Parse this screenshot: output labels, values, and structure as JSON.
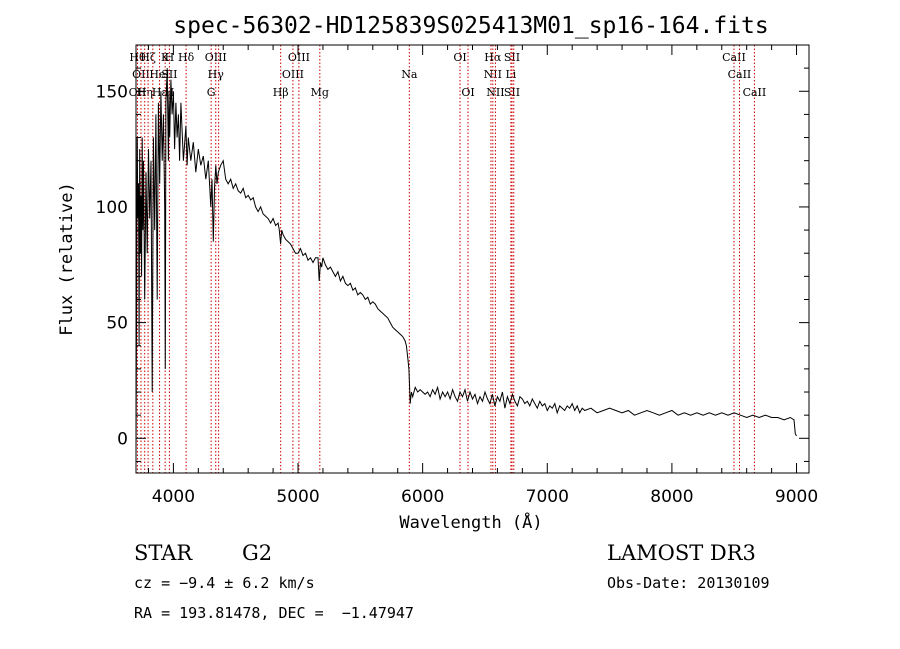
{
  "chart_data": {
    "type": "line",
    "title": "spec-56302-HD125839S025413M01_sp16-164.fits",
    "xlabel": "Wavelength (Å)",
    "ylabel": "Flux (relative)",
    "xlim": [
      3700,
      9100
    ],
    "ylim": [
      -15,
      170
    ],
    "xticks": [
      "4000",
      "5000",
      "6000",
      "7000",
      "8000",
      "9000"
    ],
    "yticks": [
      "0",
      "50",
      "100",
      "150"
    ],
    "grid": false,
    "series": [
      {
        "x": [
          3700,
          3705,
          3710,
          3715,
          3720,
          3725,
          3730,
          3735,
          3740,
          3745,
          3750,
          3755,
          3760,
          3770,
          3780,
          3790,
          3800,
          3810,
          3820,
          3830,
          3840,
          3850,
          3860,
          3870,
          3880,
          3890,
          3900,
          3910,
          3920,
          3930,
          3935,
          3940,
          3950,
          3960,
          3965,
          3970,
          3980,
          3990,
          4000,
          4010,
          4020,
          4030,
          4040,
          4050,
          4060,
          4080,
          4100,
          4110,
          4120,
          4140,
          4160,
          4180,
          4200,
          4220,
          4240,
          4260,
          4280,
          4300,
          4310,
          4320,
          4330,
          4340,
          4350,
          4360,
          4380,
          4400,
          4420,
          4440,
          4460,
          4480,
          4500,
          4520,
          4540,
          4560,
          4580,
          4600,
          4620,
          4640,
          4660,
          4680,
          4700,
          4720,
          4740,
          4760,
          4780,
          4800,
          4820,
          4840,
          4850,
          4860,
          4870,
          4880,
          4900,
          4920,
          4940,
          4960,
          4980,
          5000,
          5020,
          5040,
          5060,
          5080,
          5100,
          5120,
          5140,
          5160,
          5170,
          5180,
          5190,
          5200,
          5220,
          5240,
          5260,
          5280,
          5300,
          5320,
          5340,
          5360,
          5380,
          5400,
          5420,
          5440,
          5460,
          5480,
          5500,
          5520,
          5540,
          5560,
          5580,
          5600,
          5620,
          5640,
          5660,
          5680,
          5700,
          5720,
          5740,
          5760,
          5780,
          5800,
          5820,
          5840,
          5860,
          5870,
          5880,
          5890,
          5895,
          5900,
          5910,
          5920,
          5940,
          5960,
          5980,
          6000,
          6020,
          6040,
          6060,
          6080,
          6100,
          6120,
          6140,
          6160,
          6180,
          6200,
          6220,
          6240,
          6260,
          6280,
          6300,
          6320,
          6340,
          6360,
          6380,
          6400,
          6420,
          6440,
          6460,
          6480,
          6500,
          6520,
          6540,
          6560,
          6580,
          6600,
          6620,
          6640,
          6660,
          6680,
          6700,
          6720,
          6740,
          6760,
          6780,
          6800,
          6820,
          6840,
          6860,
          6880,
          6900,
          6920,
          6940,
          6960,
          6980,
          7000,
          7020,
          7040,
          7060,
          7080,
          7100,
          7120,
          7140,
          7160,
          7180,
          7200,
          7220,
          7240,
          7260,
          7280,
          7300,
          7350,
          7400,
          7450,
          7500,
          7550,
          7600,
          7650,
          7700,
          7750,
          7800,
          7850,
          7900,
          7950,
          8000,
          8050,
          8100,
          8150,
          8200,
          8250,
          8300,
          8350,
          8400,
          8450,
          8500,
          8550,
          8600,
          8650,
          8700,
          8750,
          8800,
          8850,
          8900,
          8950,
          8980,
          8990,
          9000
        ],
        "y": [
          -10,
          60,
          130,
          95,
          110,
          40,
          125,
          80,
          105,
          70,
          130,
          90,
          120,
          60,
          115,
          80,
          125,
          95,
          120,
          20,
          130,
          90,
          140,
          60,
          145,
          110,
          150,
          120,
          140,
          100,
          30,
          145,
          160,
          120,
          150,
          130,
          155,
          140,
          150,
          125,
          145,
          130,
          140,
          120,
          145,
          120,
          135,
          118,
          130,
          120,
          128,
          115,
          125,
          118,
          122,
          112,
          120,
          100,
          112,
          85,
          108,
          118,
          110,
          115,
          118,
          120,
          112,
          110,
          112,
          108,
          110,
          107,
          106,
          108,
          104,
          105,
          103,
          104,
          100,
          98,
          100,
          97,
          96,
          95,
          93,
          95,
          92,
          93,
          90,
          84,
          90,
          88,
          86,
          85,
          84,
          82,
          80,
          80,
          82,
          79,
          80,
          77,
          78,
          76,
          78,
          78,
          68,
          76,
          74,
          78,
          75,
          73,
          74,
          72,
          70,
          72,
          68,
          70,
          67,
          66,
          67,
          64,
          65,
          62,
          63,
          62,
          60,
          61,
          58,
          59,
          58,
          56,
          55,
          54,
          53,
          52,
          50,
          48,
          47,
          46,
          45,
          44,
          42,
          40,
          35,
          30,
          22,
          15,
          20,
          18,
          22,
          20,
          21,
          20,
          19,
          20,
          18,
          21,
          19,
          22,
          17,
          20,
          18,
          20,
          17,
          21,
          18,
          16,
          20,
          18,
          21,
          16,
          20,
          17,
          19,
          15,
          18,
          16,
          20,
          17,
          15,
          19,
          14,
          18,
          16,
          20,
          13,
          18,
          15,
          19,
          16,
          14,
          18,
          17,
          15,
          16,
          14,
          17,
          15,
          13,
          16,
          14,
          15,
          12,
          14,
          13,
          15,
          11,
          14,
          13,
          12,
          14,
          13,
          15,
          12,
          14,
          11,
          13,
          12,
          13,
          11,
          12,
          13,
          12,
          11,
          12,
          10,
          11,
          12,
          11,
          10,
          11,
          12,
          10,
          11,
          10,
          11,
          10,
          11,
          10,
          11,
          10,
          11,
          10,
          9,
          10,
          9,
          10,
          9,
          9,
          8,
          9,
          8,
          2,
          1
        ]
      }
    ],
    "lines": [
      {
        "x": 3712,
        "labels": [
          "Hθ",
          "",
          "OII"
        ]
      },
      {
        "x": 3740,
        "labels": [
          "",
          "OII",
          ""
        ]
      },
      {
        "x": 3770,
        "labels": [
          "",
          "",
          "Hη"
        ]
      },
      {
        "x": 3797,
        "labels": [
          "Hζ",
          "",
          ""
        ]
      },
      {
        "x": 3835,
        "labels": [
          "",
          "",
          ""
        ]
      },
      {
        "x": 3889,
        "labels": [
          "",
          "HeI",
          "Hε"
        ]
      },
      {
        "x": 3934,
        "labels": [
          "K",
          "",
          ""
        ]
      },
      {
        "x": 3968,
        "labels": [
          "H",
          "SII",
          "H"
        ]
      },
      {
        "x": 4102,
        "labels": [
          "Hδ",
          "",
          ""
        ]
      },
      {
        "x": 4303,
        "labels": [
          "",
          "",
          "G"
        ]
      },
      {
        "x": 4340,
        "labels": [
          "OIII",
          "Hγ",
          ""
        ]
      },
      {
        "x": 4363,
        "labels": [
          "",
          "",
          ""
        ]
      },
      {
        "x": 4861,
        "labels": [
          "",
          "",
          "Hβ"
        ]
      },
      {
        "x": 4959,
        "labels": [
          "",
          "OIII",
          ""
        ]
      },
      {
        "x": 5007,
        "labels": [
          "OIII",
          "",
          ""
        ]
      },
      {
        "x": 5175,
        "labels": [
          "",
          "",
          "Mg"
        ]
      },
      {
        "x": 5893,
        "labels": [
          "",
          "Na",
          ""
        ]
      },
      {
        "x": 6300,
        "labels": [
          "OI",
          "",
          ""
        ]
      },
      {
        "x": 6364,
        "labels": [
          "",
          "",
          "OI"
        ]
      },
      {
        "x": 6548,
        "labels": [
          "",
          "",
          ""
        ]
      },
      {
        "x": 6563,
        "labels": [
          "Hα",
          "NII",
          ""
        ]
      },
      {
        "x": 6584,
        "labels": [
          "",
          "",
          "NII"
        ]
      },
      {
        "x": 6708,
        "labels": [
          "",
          "Li",
          ""
        ]
      },
      {
        "x": 6717,
        "labels": [
          "SII",
          "",
          "SII"
        ]
      },
      {
        "x": 6731,
        "labels": [
          "",
          "",
          ""
        ]
      },
      {
        "x": 8498,
        "labels": [
          "CaII",
          "",
          ""
        ]
      },
      {
        "x": 8542,
        "labels": [
          "",
          "CaII",
          ""
        ]
      },
      {
        "x": 8662,
        "labels": [
          "",
          "",
          "CaII"
        ]
      }
    ]
  },
  "info": {
    "star_type": "STAR",
    "subclass": "G2",
    "survey": "LAMOST DR3",
    "velocity": "cz = −9.4 ± 6.2 km/s",
    "obs_date": "Obs-Date: 20130109",
    "coords": "RA = 193.81478, DEC =  −1.47947"
  }
}
